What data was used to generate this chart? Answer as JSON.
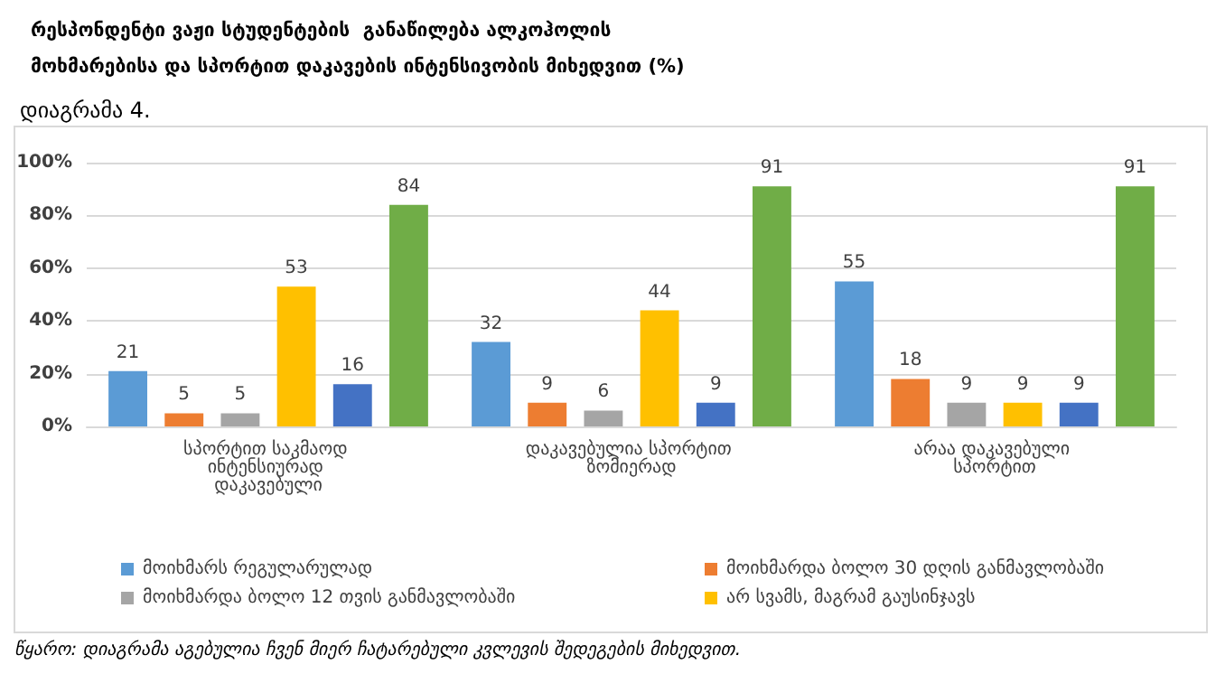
{
  "chart_data": {
    "type": "bar",
    "title": "რესპონდენტი ვაჟი სტუდენტების  განაწილება ალკოჰოლის მოხმარებისა და სპორტით დაკავების ინტენსივობის მიხედვით (%)",
    "subtitle": "დიაგრამა 4.",
    "categories": [
      "სპორტით საკმაოდ ინტენსიურად დაკავებული",
      "დაკავებულია სპორტით ზომიერად",
      "არაა დაკავებული სპორტით"
    ],
    "series": [
      {
        "name": "მოიხმარს რეგულარულად",
        "color": "#5b9bd5",
        "values": [
          21,
          32,
          55
        ]
      },
      {
        "name": "მოიხმარდა ბოლო 30 დღის განმავლობაში",
        "color": "#ed7d31",
        "values": [
          5,
          9,
          18
        ]
      },
      {
        "name": "მოიხმარდა ბოლო 12 თვის განმავლობაში",
        "color": "#a5a5a5",
        "values": [
          5,
          6,
          9
        ]
      },
      {
        "name": "არ სვამს, მაგრამ გაუსინჯავს",
        "color": "#ffc000",
        "values": [
          53,
          44,
          9
        ]
      },
      {
        "color": "#4472c4",
        "values": [
          16,
          9,
          9
        ]
      },
      {
        "color": "#70ad47",
        "values": [
          84,
          91,
          91
        ]
      }
    ],
    "ylim": [
      0,
      100
    ],
    "yticks": [
      {
        "value": 0,
        "label": "0%"
      },
      {
        "value": 20,
        "label": "20%"
      },
      {
        "value": 40,
        "label": "40%"
      },
      {
        "value": 60,
        "label": "60%"
      },
      {
        "value": 80,
        "label": "80%"
      },
      {
        "value": 100,
        "label": "100%"
      }
    ],
    "grid": "y",
    "legend": "bottom",
    "data_labels": true,
    "annotations": [
      "წყარო: დიაგრამა აგებულია ჩვენ მიერ ჩატარებული კვლევის შედეგების მიხედვით."
    ]
  }
}
